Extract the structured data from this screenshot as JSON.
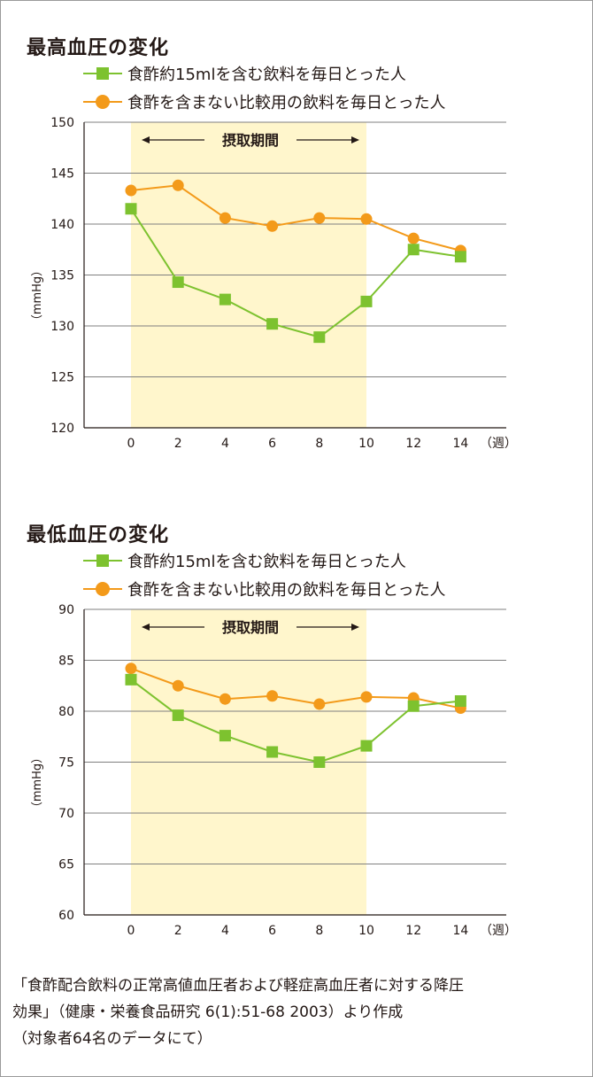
{
  "colors": {
    "green": "#7dc22f",
    "orange": "#f39a1a",
    "shade": "#fff6cc",
    "grid": "#7f7f7f",
    "axis": "#231815"
  },
  "legend": {
    "series1": "食酢約15mlを含む飲料を毎日とった人",
    "series2": "食酢を含まない比較用の飲料を毎日とった人"
  },
  "chart_data": [
    {
      "type": "line",
      "title": "最高血圧の変化",
      "ylabel": "（mmHg）",
      "xunit": "（週）",
      "x": [
        0,
        2,
        4,
        6,
        8,
        10,
        12,
        14
      ],
      "ylim": [
        120,
        150
      ],
      "yticks": [
        120,
        125,
        130,
        135,
        140,
        145,
        150
      ],
      "grid": true,
      "legend_position": "top-left",
      "shaded_period": {
        "from": 0,
        "to": 10,
        "label": "摂取期間"
      },
      "series": [
        {
          "name": "食酢約15mlを含む飲料を毎日とった人",
          "marker": "square",
          "color": "green",
          "values": [
            141.5,
            134.3,
            132.6,
            130.2,
            128.9,
            132.4,
            137.5,
            136.8
          ]
        },
        {
          "name": "食酢を含まない比較用の飲料を毎日とった人",
          "marker": "circle",
          "color": "orange",
          "values": [
            143.3,
            143.8,
            140.6,
            139.8,
            140.6,
            140.5,
            138.6,
            137.4
          ]
        }
      ]
    },
    {
      "type": "line",
      "title": "最低血圧の変化",
      "ylabel": "（mmHg）",
      "xunit": "（週）",
      "x": [
        0,
        2,
        4,
        6,
        8,
        10,
        12,
        14
      ],
      "ylim": [
        60,
        90
      ],
      "yticks": [
        60,
        65,
        70,
        75,
        80,
        85,
        90
      ],
      "grid": true,
      "legend_position": "top-left",
      "shaded_period": {
        "from": 0,
        "to": 10,
        "label": "摂取期間"
      },
      "series": [
        {
          "name": "食酢約15mlを含む飲料を毎日とった人",
          "marker": "square",
          "color": "green",
          "values": [
            83.1,
            79.6,
            77.6,
            76.0,
            75.0,
            76.6,
            80.5,
            81.0
          ]
        },
        {
          "name": "食酢を含まない比較用の飲料を毎日とった人",
          "marker": "circle",
          "color": "orange",
          "values": [
            84.2,
            82.5,
            81.2,
            81.5,
            80.7,
            81.4,
            81.3,
            80.3
          ]
        }
      ]
    }
  ],
  "footnote": {
    "line1": "「食酢配合飲料の正常高値血圧者および軽症高血圧者に対する降圧",
    "line2": "効果」（健康・栄養食品研究 6(1):51-68 2003）より作成",
    "line3": "（対象者64名のデータにて）"
  }
}
